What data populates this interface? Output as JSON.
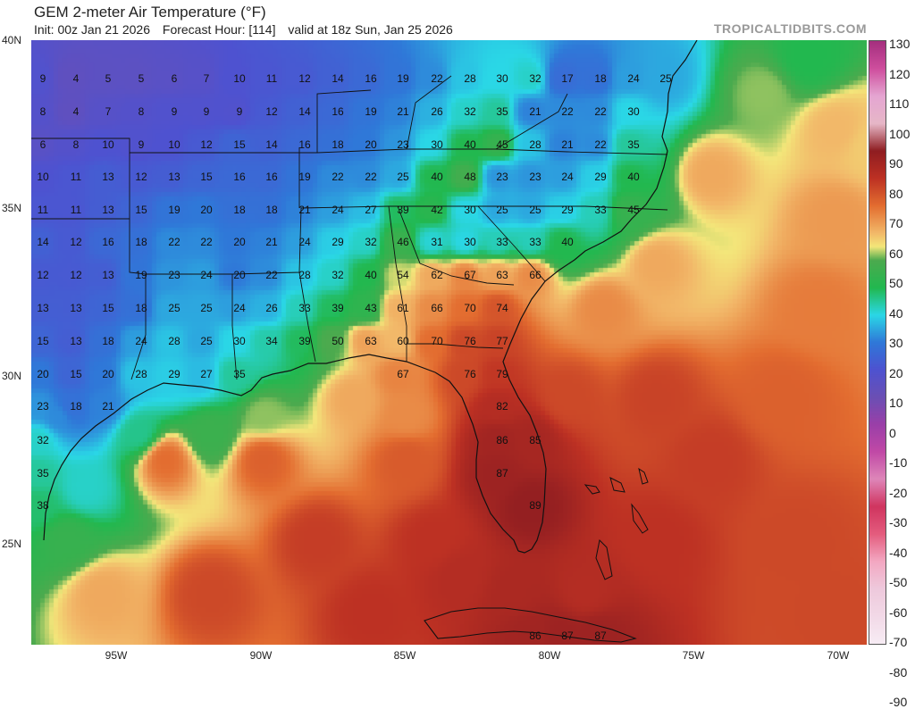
{
  "header": {
    "title": "GEM 2-meter Air Temperature (°F)",
    "init": "Init: 00z Jan 21 2026",
    "forecast_hour": "Forecast Hour: [114]",
    "valid": "valid at 18z Sun, Jan 25 2026",
    "brand": "TROPICALTIDBITS.COM"
  },
  "colorbar": {
    "labels": [
      "130",
      "120",
      "110",
      "100",
      "90",
      "80",
      "70",
      "60",
      "50",
      "40",
      "30",
      "20",
      "10",
      "0",
      "-10",
      "-20",
      "-30",
      "-40",
      "-50",
      "-60",
      "-70",
      "-80",
      "-90"
    ],
    "stops": [
      {
        "value": 130,
        "color": "#a5307f"
      },
      {
        "value": 120,
        "color": "#cf4f9e"
      },
      {
        "value": 110,
        "color": "#e5a6d2"
      },
      {
        "value": 100,
        "color": "#e6b7c7"
      },
      {
        "value": 90,
        "color": "#8f1d21"
      },
      {
        "value": 80,
        "color": "#bd3123"
      },
      {
        "value": 70,
        "color": "#e36d30"
      },
      {
        "value": 60,
        "color": "#f2b869"
      },
      {
        "value": 55,
        "color": "#f3e67a"
      },
      {
        "value": 50,
        "color": "#4caa4e"
      },
      {
        "value": 40,
        "color": "#22b84f"
      },
      {
        "value": 30,
        "color": "#2ad7e6"
      },
      {
        "value": 20,
        "color": "#2f78d8"
      },
      {
        "value": 10,
        "color": "#4e52d0"
      },
      {
        "value": 0,
        "color": "#6b4fb4"
      },
      {
        "value": -10,
        "color": "#9a3fa8"
      },
      {
        "value": -20,
        "color": "#c149a6"
      },
      {
        "value": -30,
        "color": "#de86b9"
      },
      {
        "value": -40,
        "color": "#d0355f"
      },
      {
        "value": -50,
        "color": "#e45c7e"
      },
      {
        "value": -60,
        "color": "#f3a8c2"
      },
      {
        "value": -70,
        "color": "#eec9dc"
      },
      {
        "value": -80,
        "color": "#f2d9e7"
      },
      {
        "value": -90,
        "color": "#f7ecf4"
      }
    ]
  },
  "lat_labels": [
    "40N",
    "35N",
    "30N",
    "25N"
  ],
  "lon_labels": [
    "95W",
    "90W",
    "85W",
    "80W",
    "75W",
    "70W"
  ],
  "values": [
    [
      "9",
      "4",
      "5",
      "5",
      "6",
      "7",
      "10",
      "11",
      "12",
      "14",
      "16",
      "19",
      "22",
      "28",
      "30",
      "32",
      "17",
      "18",
      "24",
      "25"
    ],
    [
      "8",
      "4",
      "7",
      "8",
      "9",
      "9",
      "9",
      "12",
      "14",
      "16",
      "19",
      "21",
      "26",
      "32",
      "35",
      "21",
      "22",
      "22",
      "30"
    ],
    [
      "6",
      "8",
      "10",
      "9",
      "10",
      "12",
      "15",
      "14",
      "16",
      "18",
      "20",
      "23",
      "30",
      "40",
      "45",
      "28",
      "21",
      "22",
      "35"
    ],
    [
      "10",
      "11",
      "13",
      "12",
      "13",
      "15",
      "16",
      "16",
      "19",
      "22",
      "22",
      "25",
      "40",
      "48",
      "23",
      "23",
      "24",
      "29",
      "40"
    ],
    [
      "11",
      "11",
      "13",
      "15",
      "19",
      "20",
      "18",
      "18",
      "21",
      "24",
      "27",
      "39",
      "42",
      "30",
      "25",
      "25",
      "29",
      "33",
      "45"
    ],
    [
      "14",
      "12",
      "16",
      "18",
      "22",
      "22",
      "20",
      "21",
      "24",
      "29",
      "32",
      "46",
      "31",
      "30",
      "33",
      "33",
      "40"
    ],
    [
      "12",
      "12",
      "13",
      "19",
      "23",
      "24",
      "20",
      "22",
      "28",
      "32",
      "40",
      "54",
      "62",
      "67",
      "63",
      "66"
    ],
    [
      "13",
      "13",
      "15",
      "18",
      "25",
      "25",
      "24",
      "26",
      "33",
      "39",
      "43",
      "61",
      "66",
      "70",
      "74"
    ],
    [
      "15",
      "13",
      "18",
      "24",
      "28",
      "25",
      "30",
      "34",
      "39",
      "50",
      "63",
      "60",
      "70",
      "76",
      "77"
    ],
    [
      "20",
      "15",
      "20",
      "28",
      "29",
      "27",
      "35",
      "67",
      "76",
      "79"
    ],
    [
      "23",
      "18",
      "21",
      "82"
    ],
    [
      "32",
      "86",
      "85"
    ],
    [
      "35",
      "87"
    ],
    [
      "38",
      "89"
    ],
    [
      "86",
      "87",
      "87"
    ]
  ]
}
